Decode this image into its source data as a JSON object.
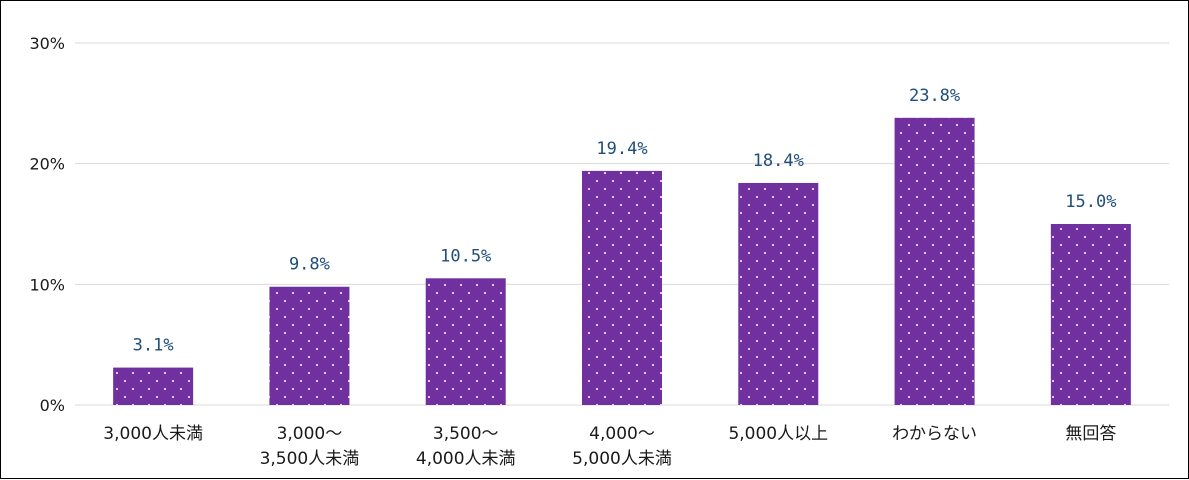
{
  "chart_data": {
    "type": "bar",
    "categories": [
      [
        "3,000人未満"
      ],
      [
        "3,000～",
        "3,500人未満"
      ],
      [
        "3,500～",
        "4,000人未満"
      ],
      [
        "4,000～",
        "5,000人未満"
      ],
      [
        "5,000人以上"
      ],
      [
        "わからない"
      ],
      [
        "無回答"
      ]
    ],
    "values": [
      3.1,
      9.8,
      10.5,
      19.4,
      18.4,
      23.8,
      15.0
    ],
    "data_labels": [
      "3.1%",
      "9.8%",
      "10.5%",
      "19.4%",
      "18.4%",
      "23.8%",
      "15.0%"
    ],
    "y_ticks": [
      0,
      10,
      20,
      30
    ],
    "y_tick_labels": [
      "0%",
      "10%",
      "20%",
      "30%"
    ],
    "ylim": [
      0,
      30
    ],
    "title": "",
    "xlabel": "",
    "ylabel": "",
    "grid": true,
    "legend": "none",
    "colors": {
      "bar": "#7030a0",
      "bar_dot": "#e8dcf2",
      "grid": "#d9d9d9",
      "data_label": "#1f4e79"
    }
  }
}
